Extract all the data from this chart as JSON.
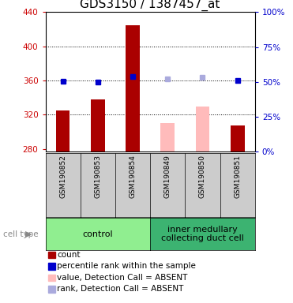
{
  "title": "GDS3150 / 1387457_at",
  "samples": [
    "GSM190852",
    "GSM190853",
    "GSM190854",
    "GSM190849",
    "GSM190850",
    "GSM190851"
  ],
  "groups": [
    {
      "name": "control",
      "indices": [
        0,
        1,
        2
      ],
      "color": "#90ee90"
    },
    {
      "name": "inner medullary\ncollecting duct cell",
      "indices": [
        3,
        4,
        5
      ],
      "color": "#3cb371"
    }
  ],
  "count_values": [
    325,
    338,
    425,
    310,
    330,
    307
  ],
  "count_absent": [
    false,
    false,
    false,
    true,
    true,
    false
  ],
  "percentile_values": [
    359,
    358,
    365,
    362,
    364,
    360
  ],
  "percentile_absent": [
    false,
    false,
    false,
    true,
    true,
    false
  ],
  "ymin": 277,
  "ymax": 440,
  "yticks_left": [
    280,
    320,
    360,
    400,
    440
  ],
  "yticks_right": [
    0,
    25,
    50,
    75,
    100
  ],
  "dotted_lines": [
    320,
    360,
    400
  ],
  "bar_width": 0.4,
  "bg_color_plot": "#ffffff",
  "bg_color_fig": "#ffffff",
  "title_fontsize": 11,
  "tick_label_fontsize": 7.5,
  "legend_fontsize": 7.5,
  "left_axis_color": "#cc0000",
  "right_axis_color": "#0000cc",
  "group_label_fontsize": 8,
  "sample_label_fontsize": 6.5,
  "bar_color_present": "#aa0000",
  "bar_color_absent": "#ffbbbb",
  "dot_color_present": "#0000cc",
  "dot_color_absent": "#aaaadd"
}
